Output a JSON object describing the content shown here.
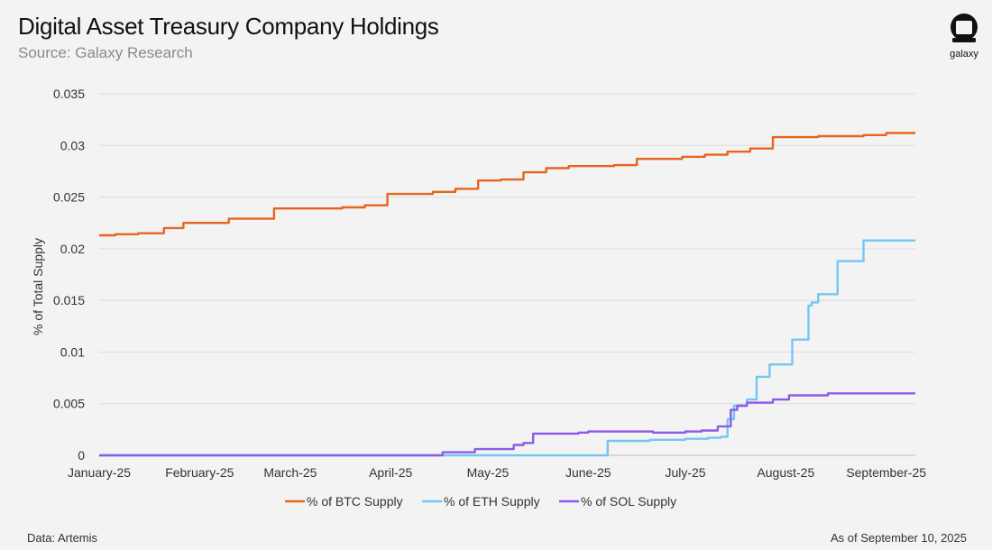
{
  "header": {
    "title": "Digital Asset Treasury Company Holdings",
    "subtitle": "Source: Galaxy Research"
  },
  "brand": {
    "logo_icon": "galaxy-logo-icon",
    "name": "galaxy"
  },
  "footer": {
    "data_source": "Data: Artemis",
    "as_of": "As of September 10, 2025"
  },
  "chart_data": {
    "type": "line",
    "title": "Digital Asset Treasury Company Holdings",
    "xlabel": "",
    "ylabel": "% of Total Supply",
    "xlim": [
      "2025-01-01",
      "2025-09-10"
    ],
    "ylim": [
      0,
      0.035
    ],
    "y_ticks": [
      0,
      0.005,
      0.01,
      0.015,
      0.02,
      0.025,
      0.03,
      0.035
    ],
    "y_tick_labels": [
      "0",
      "0.005",
      "0.01",
      "0.015",
      "0.02",
      "0.025",
      "0.03",
      "0.035"
    ],
    "x_tick_dates": [
      "2025-01-01",
      "2025-02-01",
      "2025-03-01",
      "2025-04-01",
      "2025-05-01",
      "2025-06-01",
      "2025-07-01",
      "2025-08-01",
      "2025-09-01"
    ],
    "x_tick_labels": [
      "January-25",
      "February-25",
      "March-25",
      "April-25",
      "May-25",
      "June-25",
      "July-25",
      "August-25",
      "September-25"
    ],
    "grid": "horizontal",
    "legend_position": "bottom",
    "series": [
      {
        "name": "% of BTC Supply",
        "color": "#e8641e",
        "step": true,
        "points": [
          [
            "2025-01-01",
            0.0213
          ],
          [
            "2025-01-06",
            0.0214
          ],
          [
            "2025-01-13",
            0.0215
          ],
          [
            "2025-01-21",
            0.022
          ],
          [
            "2025-01-27",
            0.0225
          ],
          [
            "2025-02-10",
            0.0229
          ],
          [
            "2025-02-24",
            0.0239
          ],
          [
            "2025-03-17",
            0.024
          ],
          [
            "2025-03-24",
            0.0242
          ],
          [
            "2025-03-31",
            0.0253
          ],
          [
            "2025-04-14",
            0.0255
          ],
          [
            "2025-04-21",
            0.0258
          ],
          [
            "2025-04-28",
            0.0266
          ],
          [
            "2025-05-05",
            0.0267
          ],
          [
            "2025-05-12",
            0.0274
          ],
          [
            "2025-05-19",
            0.0278
          ],
          [
            "2025-05-26",
            0.028
          ],
          [
            "2025-06-09",
            0.0281
          ],
          [
            "2025-06-16",
            0.0287
          ],
          [
            "2025-06-30",
            0.0289
          ],
          [
            "2025-07-07",
            0.0291
          ],
          [
            "2025-07-14",
            0.0294
          ],
          [
            "2025-07-21",
            0.0297
          ],
          [
            "2025-07-28",
            0.0308
          ],
          [
            "2025-08-11",
            0.0309
          ],
          [
            "2025-08-25",
            0.031
          ],
          [
            "2025-09-01",
            0.0312
          ],
          [
            "2025-09-10",
            0.0312
          ]
        ]
      },
      {
        "name": "% of ETH Supply",
        "color": "#74c6f2",
        "step": true,
        "points": [
          [
            "2025-01-01",
            0
          ],
          [
            "2025-06-07",
            0.0014
          ],
          [
            "2025-06-20",
            0.0015
          ],
          [
            "2025-07-01",
            0.0016
          ],
          [
            "2025-07-08",
            0.0017
          ],
          [
            "2025-07-12",
            0.0018
          ],
          [
            "2025-07-14",
            0.0035
          ],
          [
            "2025-07-16",
            0.0048
          ],
          [
            "2025-07-20",
            0.0054
          ],
          [
            "2025-07-23",
            0.0076
          ],
          [
            "2025-07-27",
            0.0088
          ],
          [
            "2025-08-03",
            0.0112
          ],
          [
            "2025-08-08",
            0.0145
          ],
          [
            "2025-08-09",
            0.0148
          ],
          [
            "2025-08-11",
            0.0156
          ],
          [
            "2025-08-17",
            0.0188
          ],
          [
            "2025-08-25",
            0.0208
          ],
          [
            "2025-09-10",
            0.0208
          ]
        ]
      },
      {
        "name": "% of SOL Supply",
        "color": "#8b5ce6",
        "step": true,
        "points": [
          [
            "2025-01-01",
            0
          ],
          [
            "2025-04-17",
            0.0003
          ],
          [
            "2025-04-27",
            0.0006
          ],
          [
            "2025-05-09",
            0.001
          ],
          [
            "2025-05-12",
            0.0012
          ],
          [
            "2025-05-15",
            0.0021
          ],
          [
            "2025-05-29",
            0.0022
          ],
          [
            "2025-06-01",
            0.0023
          ],
          [
            "2025-06-21",
            0.0022
          ],
          [
            "2025-07-01",
            0.0023
          ],
          [
            "2025-07-06",
            0.0024
          ],
          [
            "2025-07-11",
            0.0028
          ],
          [
            "2025-07-15",
            0.0044
          ],
          [
            "2025-07-17",
            0.0048
          ],
          [
            "2025-07-20",
            0.0051
          ],
          [
            "2025-07-28",
            0.0054
          ],
          [
            "2025-08-02",
            0.0058
          ],
          [
            "2025-08-14",
            0.006
          ],
          [
            "2025-09-10",
            0.006
          ]
        ]
      }
    ]
  }
}
